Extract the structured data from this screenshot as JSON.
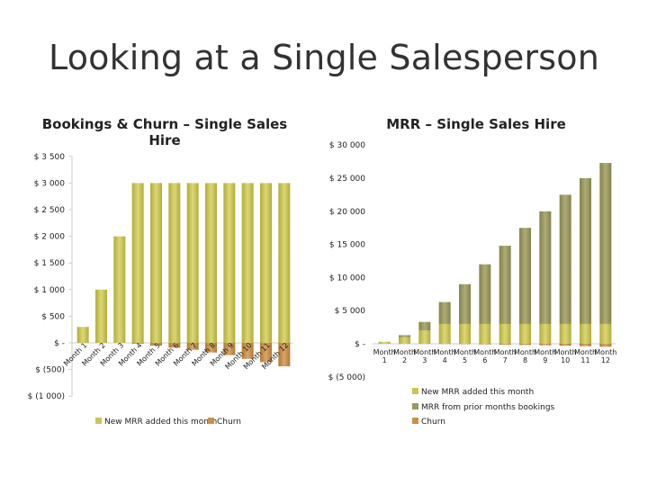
{
  "slide": {
    "title": "Looking at a Single Salesperson"
  },
  "chart_data": [
    {
      "type": "bar",
      "title": "Bookings & Churn – Single Sales Hire",
      "title_lines": [
        "Bookings & Churn – Single Sales",
        "Hire"
      ],
      "categories": [
        "Month 1",
        "Month 2",
        "Month 3",
        "Month 4",
        "Month 5",
        "Month 6",
        "Month 7",
        "Month 8",
        "Month 9",
        "Month 10",
        "Month 11",
        "Month 12"
      ],
      "series": [
        {
          "name": "New MRR added this month",
          "color": "#c9c556",
          "values": [
            300,
            1000,
            2000,
            3000,
            3000,
            3000,
            3000,
            3000,
            3000,
            3000,
            3000,
            3000
          ]
        },
        {
          "name": "Churn",
          "color": "#c8924a",
          "values": [
            0,
            0,
            0,
            -15,
            -50,
            -90,
            -130,
            -180,
            -230,
            -300,
            -360,
            -440
          ]
        }
      ],
      "yticks": [
        3500,
        3000,
        2500,
        2000,
        1500,
        1000,
        500,
        0,
        -500,
        -1000
      ],
      "ytick_labels": [
        "$ 3 500",
        "$ 3 000",
        "$ 2 500",
        "$ 2 000",
        "$ 1 500",
        "$ 1 000",
        "$ 500",
        "$ -",
        "$ (500)",
        "$ (1 000)"
      ],
      "ylim": [
        -1000,
        3500
      ],
      "legend_position": "bottom"
    },
    {
      "type": "bar",
      "stacked": true,
      "title": "MRR – Single Sales Hire",
      "categories": [
        "Month 1",
        "Month 2",
        "Month 3",
        "Month 4",
        "Month 5",
        "Month 6",
        "Month 7",
        "Month 8",
        "Month 9",
        "Month 10",
        "Month 11",
        "Month 12"
      ],
      "x_tick_top": [
        "Month",
        "Month",
        "Month",
        "Month",
        "Month",
        "Month",
        "Month",
        "Month",
        "Month",
        "Month",
        "Month",
        "Month"
      ],
      "x_tick_bottom": [
        "1",
        "2",
        "3",
        "4",
        "5",
        "6",
        "7",
        "8",
        "9",
        "10",
        "11",
        "12"
      ],
      "series": [
        {
          "name": "New MRR added this month",
          "color": "#c9c556",
          "values": [
            300,
            1000,
            2000,
            3000,
            3000,
            3000,
            3000,
            3000,
            3000,
            3000,
            3000,
            3000
          ]
        },
        {
          "name": "MRR from prior months bookings",
          "color": "#9a9860",
          "values": [
            0,
            300,
            1300,
            3300,
            6000,
            9000,
            11800,
            14500,
            17000,
            19500,
            22000,
            24300
          ]
        },
        {
          "name": "Churn",
          "color": "#c8924a",
          "values": [
            0,
            0,
            0,
            -15,
            -50,
            -90,
            -130,
            -180,
            -230,
            -300,
            -360,
            -440
          ]
        }
      ],
      "yticks": [
        30000,
        25000,
        20000,
        15000,
        10000,
        5000,
        0,
        -5000
      ],
      "ytick_labels": [
        "$ 30 000",
        "$ 25 000",
        "$ 20 000",
        "$ 15 000",
        "$ 10 000",
        "$ 5 000",
        "$ -",
        "$ (5 000)"
      ],
      "ylim": [
        -5000,
        30000
      ],
      "legend_position": "bottom-right"
    }
  ]
}
